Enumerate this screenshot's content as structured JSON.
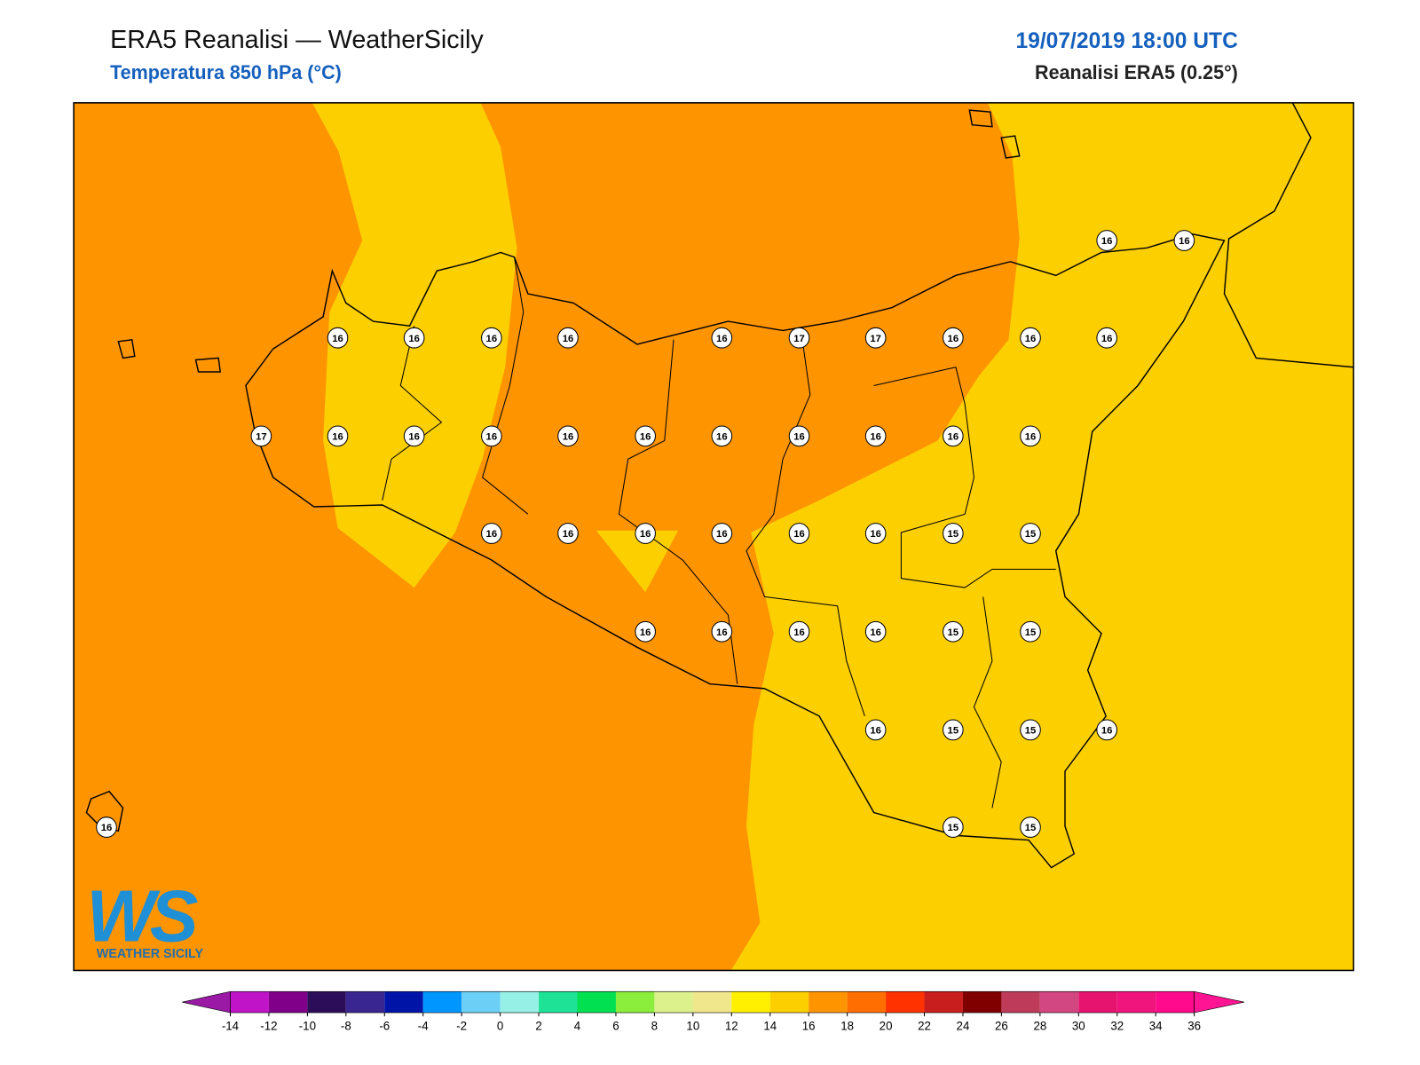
{
  "header": {
    "title": "ERA5 Reanalisi — WeatherSicily",
    "subtitle": "Temperatura 850 hPa (°C)",
    "date": "19/07/2019 18:00 UTC",
    "source": "Reanalisi ERA5 (0.25°)"
  },
  "logo": {
    "text": "WS",
    "subtitle": "WEATHER SICILY"
  },
  "stations": [
    16,
    16,
    16,
    16,
    16,
    16,
    16,
    17,
    17,
    16,
    16,
    16,
    17,
    16,
    16,
    16,
    16,
    16,
    16,
    16,
    16,
    16,
    16,
    16,
    16,
    16,
    16,
    16,
    16,
    15,
    15,
    16,
    16,
    16,
    16,
    15,
    15,
    16,
    15,
    15,
    16,
    16,
    15,
    15
  ],
  "colorbar": {
    "ticks": [
      -14,
      -12,
      -10,
      -8,
      -6,
      -4,
      -2,
      0,
      2,
      4,
      6,
      8,
      10,
      12,
      14,
      16,
      18,
      20,
      22,
      24,
      26,
      28,
      30,
      32,
      34,
      36
    ],
    "colors": [
      "#9a1aa6",
      "#c014c8",
      "#80008a",
      "#2c0d5a",
      "#3a2690",
      "#0014a8",
      "#0096ff",
      "#6ccff6",
      "#96f0e6",
      "#1ee296",
      "#00e050",
      "#8cee3c",
      "#dcf08c",
      "#f0e68c",
      "#fff000",
      "#fccf00",
      "#fd9400",
      "#ff6e00",
      "#ff3200",
      "#c81e1e",
      "#800000",
      "#be3c5a",
      "#d24682",
      "#e6146e",
      "#f0147d",
      "#ff0a8c",
      "#ff1493"
    ]
  }
}
